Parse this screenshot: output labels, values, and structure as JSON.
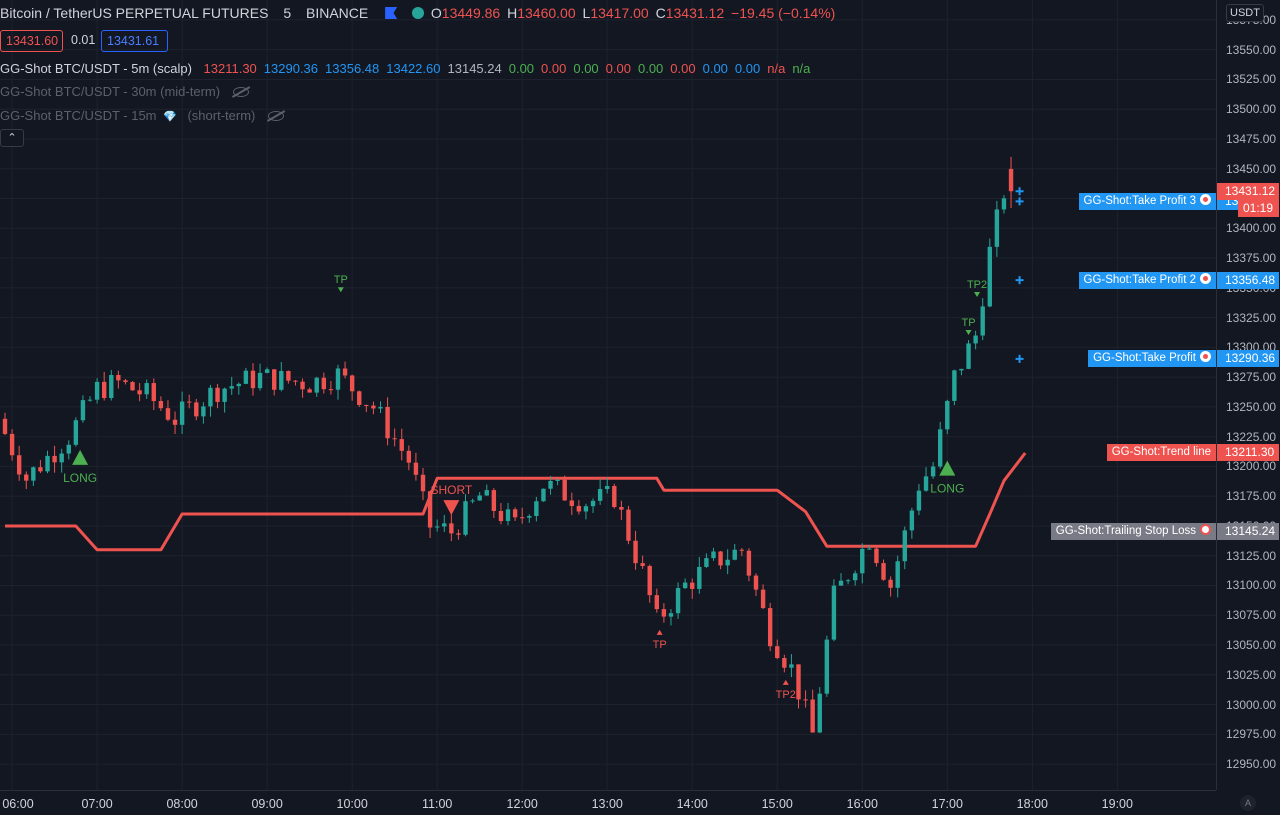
{
  "header": {
    "symbol": "Bitcoin / TetherUS PERPETUAL FUTURES",
    "interval": "5",
    "exchange": "BINANCE",
    "ohlc": {
      "o_label": "O",
      "o": "13449.86",
      "h_label": "H",
      "h": "13460.00",
      "l_label": "L",
      "l": "13417.00",
      "c_label": "C",
      "c": "13431.12",
      "change": "−19.45 (−0.14%)"
    }
  },
  "quote": {
    "bid": "13431.60",
    "spread": "0.01",
    "ask": "13431.61"
  },
  "indicators": {
    "main": {
      "name": "GG-Shot BTC/USDT - 5m (scalp)",
      "values": [
        "13211.30",
        "13290.36",
        "13356.48",
        "13422.60",
        "13145.24",
        "0.00",
        "0.00",
        "0.00",
        "0.00",
        "0.00",
        "0.00",
        "0.00",
        "0.00",
        "n/a",
        "n/a"
      ]
    },
    "mid": {
      "name": "GG-Shot BTC/USDT - 30m (mid-term)"
    },
    "short": {
      "name": "GG-Shot BTC/USDT - 15m",
      "suffix": "(short-term)"
    }
  },
  "price_axis": {
    "currency": "USDT",
    "ticks": [
      "13575.00",
      "13550.00",
      "13525.00",
      "13500.00",
      "13475.00",
      "13450.00",
      "13425.00",
      "13400.00",
      "13375.00",
      "13350.00",
      "13325.00",
      "13300.00",
      "13275.00",
      "13250.00",
      "13225.00",
      "13200.00",
      "13175.00",
      "13150.00",
      "13125.00",
      "13100.00",
      "13075.00",
      "13050.00",
      "13025.00",
      "13000.00",
      "12975.00",
      "12950.00"
    ],
    "last_price": "13431.12",
    "countdown": "01:19",
    "auto": "A"
  },
  "time_axis": {
    "labels": [
      "06:00",
      "07:00",
      "08:00",
      "09:00",
      "10:00",
      "11:00",
      "12:00",
      "13:00",
      "14:00",
      "15:00",
      "16:00",
      "17:00",
      "18:00",
      "19:00"
    ]
  },
  "levels": [
    {
      "name": "GG-Shot:Take Profit 3",
      "price": "13422.60",
      "value": 13422.6,
      "color": "#2196f3",
      "icon": "target-icon"
    },
    {
      "name": "GG-Shot:Take Profit 2",
      "price": "13356.48",
      "value": 13356.48,
      "color": "#2196f3",
      "icon": "target-icon"
    },
    {
      "name": "GG-Shot:Take Profit",
      "price": "13290.36",
      "value": 13290.36,
      "color": "#2196f3",
      "icon": "target-icon"
    },
    {
      "name": "GG-Shot:Trend line",
      "price": "13211.30",
      "value": 13211.3,
      "color": "#ef5350",
      "icon": ""
    },
    {
      "name": "GG-Shot:Trailing Stop Loss",
      "price": "13145.24",
      "value": 13145.24,
      "color": "#787b86",
      "icon": "stop-icon"
    }
  ],
  "signals": [
    {
      "label": "LONG",
      "kind": "long",
      "time": "06:48",
      "price": 13208,
      "color": "#4caf50"
    },
    {
      "label": "TP",
      "kind": "tp-long",
      "time": "09:52",
      "price": 13348,
      "color": "#4caf50"
    },
    {
      "label": "SHORT",
      "kind": "short",
      "time": "11:10",
      "price": 13165,
      "color": "#ef5350"
    },
    {
      "label": "TP",
      "kind": "tp-short",
      "time": "13:37",
      "price": 13061,
      "color": "#ef5350"
    },
    {
      "label": "TP2",
      "kind": "tp-short",
      "time": "15:06",
      "price": 13019,
      "color": "#ef5350"
    },
    {
      "label": "LONG",
      "kind": "long",
      "time": "17:00",
      "price": 13199,
      "color": "#4caf50"
    },
    {
      "label": "TP",
      "kind": "tp-long",
      "time": "17:15",
      "price": 13312,
      "color": "#4caf50"
    },
    {
      "label": "TP2",
      "kind": "tp-long",
      "time": "17:21",
      "price": 13344,
      "color": "#4caf50"
    }
  ],
  "colors": {
    "background": "#131722",
    "grid": "#1e222d",
    "up": "#26a69a",
    "down": "#ef5350",
    "trend": "#ef5350",
    "tp": "#2196f3"
  },
  "chart_data": {
    "type": "candlestick",
    "interval_minutes": 5,
    "y_range": [
      12940,
      13585
    ],
    "x_range": [
      "05:55",
      "19:40"
    ],
    "trend_line": [
      {
        "time": "05:55",
        "value": 13150
      },
      {
        "time": "06:45",
        "value": 13150
      },
      {
        "time": "07:00",
        "value": 13130
      },
      {
        "time": "07:45",
        "value": 13130
      },
      {
        "time": "08:00",
        "value": 13160
      },
      {
        "time": "10:50",
        "value": 13160
      },
      {
        "time": "11:00",
        "value": 13190
      },
      {
        "time": "13:35",
        "value": 13190
      },
      {
        "time": "13:40",
        "value": 13180
      },
      {
        "time": "15:00",
        "value": 13180
      },
      {
        "time": "15:20",
        "value": 13162
      },
      {
        "time": "15:35",
        "value": 13133
      },
      {
        "time": "17:20",
        "value": 13133
      },
      {
        "time": "17:30",
        "value": 13160
      },
      {
        "time": "17:40",
        "value": 13188
      },
      {
        "time": "17:55",
        "value": 13211.3
      }
    ],
    "anchors": [
      {
        "time": "05:55",
        "value": 13240
      },
      {
        "time": "06:15",
        "value": 13190
      },
      {
        "time": "06:45",
        "value": 13225
      },
      {
        "time": "07:05",
        "value": 13265
      },
      {
        "time": "07:20",
        "value": 13270
      },
      {
        "time": "07:40",
        "value": 13260
      },
      {
        "time": "08:00",
        "value": 13240
      },
      {
        "time": "08:30",
        "value": 13265
      },
      {
        "time": "09:00",
        "value": 13275
      },
      {
        "time": "09:35",
        "value": 13270
      },
      {
        "time": "09:55",
        "value": 13277
      },
      {
        "time": "10:20",
        "value": 13250
      },
      {
        "time": "10:45",
        "value": 13205
      },
      {
        "time": "11:00",
        "value": 13150
      },
      {
        "time": "11:15",
        "value": 13145
      },
      {
        "time": "11:35",
        "value": 13175
      },
      {
        "time": "12:00",
        "value": 13150
      },
      {
        "time": "12:20",
        "value": 13185
      },
      {
        "time": "12:50",
        "value": 13170
      },
      {
        "time": "13:10",
        "value": 13175
      },
      {
        "time": "13:30",
        "value": 13110
      },
      {
        "time": "13:40",
        "value": 13070
      },
      {
        "time": "14:00",
        "value": 13100
      },
      {
        "time": "14:20",
        "value": 13120
      },
      {
        "time": "14:40",
        "value": 13130
      },
      {
        "time": "15:00",
        "value": 13060
      },
      {
        "time": "15:15",
        "value": 13030
      },
      {
        "time": "15:30",
        "value": 12975
      },
      {
        "time": "15:45",
        "value": 13090
      },
      {
        "time": "16:10",
        "value": 13140
      },
      {
        "time": "16:25",
        "value": 13100
      },
      {
        "time": "16:45",
        "value": 13185
      },
      {
        "time": "16:55",
        "value": 13200
      },
      {
        "time": "17:10",
        "value": 13275
      },
      {
        "time": "17:25",
        "value": 13310
      },
      {
        "time": "17:35",
        "value": 13380
      },
      {
        "time": "17:45",
        "value": 13431.12
      }
    ]
  }
}
